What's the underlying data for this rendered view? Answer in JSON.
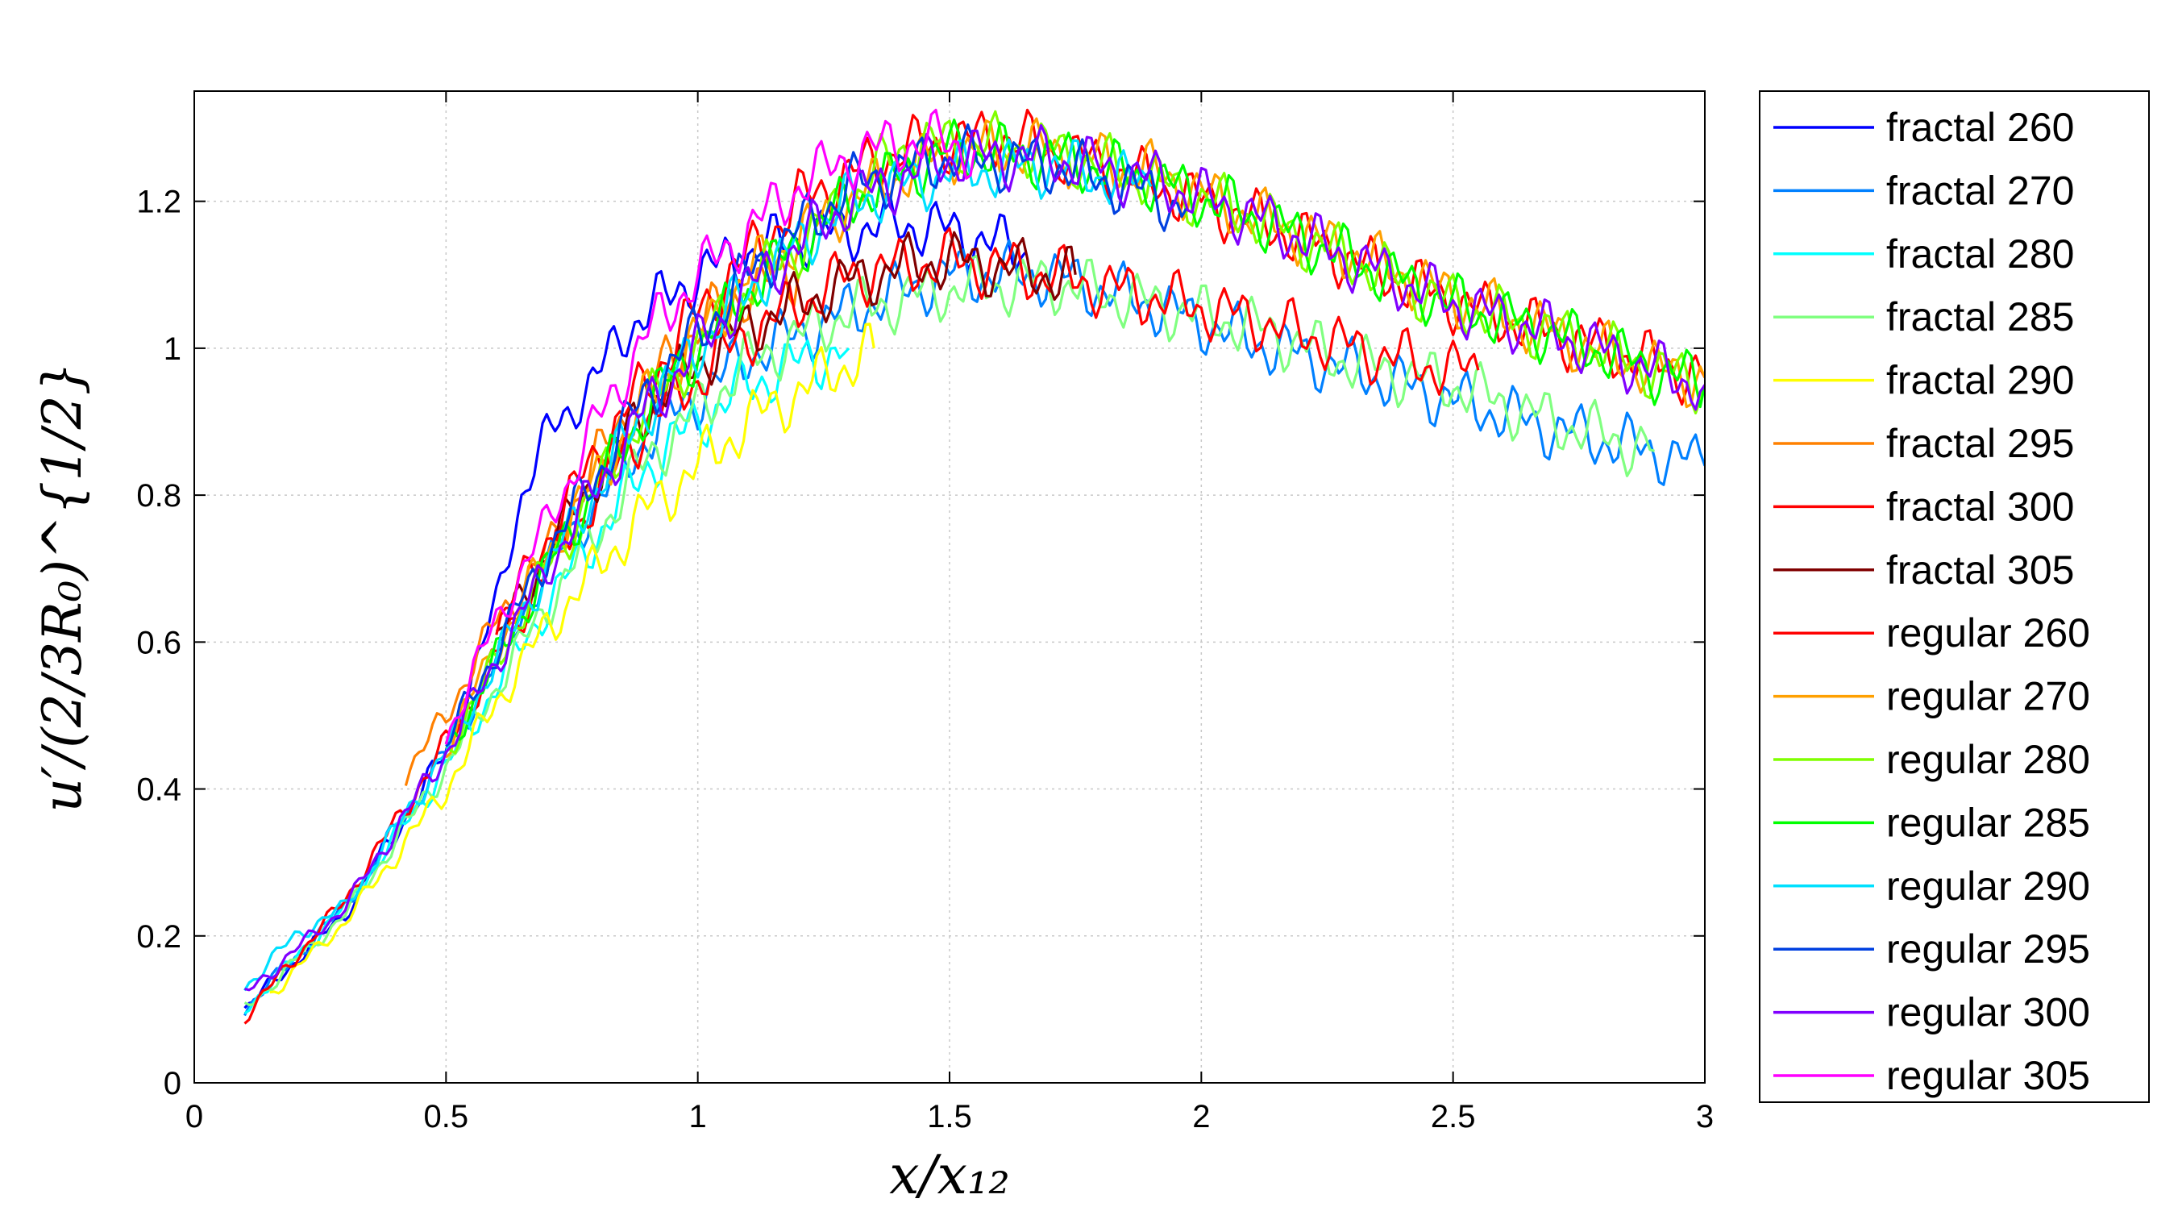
{
  "chart_data": {
    "type": "line",
    "xlabel": "x/x₁₂",
    "ylabel": "u′/(2/3R₀)^{1/2}",
    "xlim": [
      0,
      3
    ],
    "ylim": [
      0,
      1.35
    ],
    "xticks": [
      0,
      0.5,
      1,
      1.5,
      2,
      2.5,
      3
    ],
    "xtick_labels": [
      "0",
      "0.5",
      "1",
      "1.5",
      "2",
      "2.5",
      "3"
    ],
    "yticks": [
      0,
      0.2,
      0.4,
      0.6,
      0.8,
      1,
      1.2
    ],
    "ytick_labels": [
      "0",
      "0.2",
      "0.4",
      "0.6",
      "0.8",
      "1",
      "1.2"
    ],
    "grid": true,
    "legend_position": "right-outside",
    "series": [
      {
        "name": "fractal 260",
        "color": "#0000ff",
        "x": [
          0.1,
          0.3,
          0.5,
          0.6,
          0.65,
          0.7,
          0.75,
          0.8,
          0.85,
          0.9,
          1.0,
          1.1,
          1.2,
          1.3,
          1.4,
          1.5,
          1.6,
          1.65
        ],
        "y": [
          0.1,
          0.23,
          0.45,
          0.65,
          0.8,
          0.88,
          0.92,
          0.96,
          1.02,
          1.05,
          1.1,
          1.13,
          1.15,
          1.16,
          1.17,
          1.16,
          1.14,
          1.13
        ]
      },
      {
        "name": "fractal 270",
        "color": "#0080ff",
        "x": [
          0.1,
          0.3,
          0.5,
          0.7,
          0.9,
          1.1,
          1.3,
          1.5,
          1.7,
          1.9,
          2.1,
          2.3,
          2.5,
          2.7,
          2.9,
          3.0
        ],
        "y": [
          0.1,
          0.24,
          0.45,
          0.7,
          0.88,
          0.99,
          1.05,
          1.1,
          1.1,
          1.06,
          1.01,
          0.97,
          0.93,
          0.89,
          0.86,
          0.84
        ]
      },
      {
        "name": "fractal 280",
        "color": "#00ffff",
        "x": [
          0.1,
          0.3,
          0.5,
          0.7,
          0.9,
          1.0,
          1.1,
          1.2,
          1.3
        ],
        "y": [
          0.1,
          0.24,
          0.43,
          0.65,
          0.84,
          0.9,
          0.95,
          0.98,
          1.0
        ]
      },
      {
        "name": "fractal 285",
        "color": "#80ff80",
        "x": [
          0.1,
          0.3,
          0.5,
          0.7,
          0.9,
          1.1,
          1.3,
          1.5,
          1.7,
          1.9,
          2.1,
          2.3,
          2.5,
          2.7,
          2.9
        ],
        "y": [
          0.1,
          0.23,
          0.43,
          0.65,
          0.85,
          0.98,
          1.05,
          1.08,
          1.09,
          1.06,
          1.03,
          0.98,
          0.95,
          0.9,
          0.86
        ]
      },
      {
        "name": "fractal 290",
        "color": "#ffff00",
        "x": [
          0.15,
          0.3,
          0.5,
          0.6,
          0.7,
          0.8,
          0.9,
          1.0,
          1.1,
          1.2,
          1.3,
          1.35
        ],
        "y": [
          0.12,
          0.22,
          0.4,
          0.52,
          0.62,
          0.7,
          0.78,
          0.84,
          0.9,
          0.94,
          0.98,
          1.0
        ]
      },
      {
        "name": "fractal 295",
        "color": "#ff8000",
        "x": [
          0.42,
          0.5,
          0.6,
          0.7,
          0.8,
          0.9,
          1.0,
          1.1,
          1.2
        ],
        "y": [
          0.42,
          0.5,
          0.63,
          0.72,
          0.85,
          0.95,
          1.03,
          1.08,
          1.1
        ]
      },
      {
        "name": "fractal 300",
        "color": "#ff0000",
        "x": [
          0.1,
          0.3,
          0.5,
          0.7,
          0.9,
          1.1,
          1.3,
          1.5,
          1.7,
          1.9,
          2.1,
          2.3,
          2.5,
          2.55
        ],
        "y": [
          0.09,
          0.25,
          0.46,
          0.7,
          0.9,
          1.02,
          1.1,
          1.12,
          1.1,
          1.07,
          1.04,
          1.0,
          0.97,
          0.97
        ]
      },
      {
        "name": "fractal 305",
        "color": "#800000",
        "x": [
          0.6,
          0.7,
          0.8,
          0.9,
          1.0,
          1.1,
          1.2,
          1.3,
          1.4,
          1.5,
          1.6,
          1.7,
          1.75
        ],
        "y": [
          0.6,
          0.72,
          0.83,
          0.92,
          0.98,
          1.03,
          1.06,
          1.09,
          1.11,
          1.12,
          1.11,
          1.1,
          1.1
        ]
      },
      {
        "name": "regular 260",
        "color": "#ff0000",
        "x": [
          0.6,
          0.8,
          1.0,
          1.2,
          1.4,
          1.6,
          1.8,
          2.0,
          2.2,
          2.4,
          2.6,
          2.8,
          3.0
        ],
        "y": [
          0.62,
          0.86,
          1.05,
          1.2,
          1.27,
          1.29,
          1.25,
          1.2,
          1.15,
          1.09,
          1.04,
          1.0,
          0.96
        ]
      },
      {
        "name": "regular 270",
        "color": "#ffa000",
        "x": [
          0.5,
          0.7,
          0.9,
          1.1,
          1.3,
          1.5,
          1.7,
          1.9,
          2.1,
          2.3,
          2.5,
          2.7,
          2.9,
          3.0
        ],
        "y": [
          0.46,
          0.72,
          0.93,
          1.1,
          1.2,
          1.27,
          1.27,
          1.24,
          1.18,
          1.13,
          1.07,
          1.02,
          0.97,
          0.96
        ]
      },
      {
        "name": "regular 280",
        "color": "#80ff00",
        "x": [
          0.5,
          0.7,
          0.9,
          1.1,
          1.3,
          1.4,
          1.5,
          1.7,
          1.9,
          2.1,
          2.3,
          2.5,
          2.7,
          2.9,
          3.0
        ],
        "y": [
          0.45,
          0.7,
          0.92,
          1.08,
          1.2,
          1.27,
          1.28,
          1.27,
          1.23,
          1.18,
          1.12,
          1.06,
          1.02,
          0.97,
          0.95
        ]
      },
      {
        "name": "regular 285",
        "color": "#00ff00",
        "x": [
          0.5,
          0.7,
          0.9,
          1.1,
          1.3,
          1.5,
          1.7,
          1.9,
          2.1,
          2.3,
          2.5,
          2.7,
          2.9,
          3.0
        ],
        "y": [
          0.45,
          0.7,
          0.92,
          1.08,
          1.2,
          1.27,
          1.26,
          1.23,
          1.18,
          1.12,
          1.06,
          1.02,
          0.97,
          0.95
        ]
      },
      {
        "name": "regular 290",
        "color": "#00e0ff",
        "x": [
          0.1,
          0.2,
          0.3,
          0.5,
          0.7,
          0.9,
          1.1,
          1.3,
          1.5,
          1.7,
          1.9
        ],
        "y": [
          0.13,
          0.2,
          0.24,
          0.45,
          0.7,
          0.92,
          1.08,
          1.2,
          1.24,
          1.25,
          1.22
        ]
      },
      {
        "name": "regular 295",
        "color": "#0040e0",
        "x": [
          0.5,
          0.7,
          0.9,
          1.1,
          1.3,
          1.5,
          1.7,
          1.9,
          1.97
        ],
        "y": [
          0.46,
          0.72,
          0.94,
          1.1,
          1.22,
          1.26,
          1.25,
          1.21,
          1.19
        ]
      },
      {
        "name": "regular 300",
        "color": "#8000ff",
        "x": [
          0.1,
          0.3,
          0.5,
          0.7,
          0.9,
          1.1,
          1.3,
          1.5,
          1.7,
          1.9,
          2.1,
          2.3,
          2.5,
          2.7,
          2.9,
          3.0
        ],
        "y": [
          0.12,
          0.24,
          0.45,
          0.7,
          0.92,
          1.08,
          1.2,
          1.26,
          1.26,
          1.23,
          1.18,
          1.12,
          1.06,
          1.02,
          0.97,
          0.95
        ]
      },
      {
        "name": "regular 305",
        "color": "#ff00ff",
        "x": [
          0.5,
          0.6,
          0.7,
          0.8,
          0.9,
          1.0,
          1.1,
          1.2,
          1.3,
          1.4,
          1.5,
          1.55
        ],
        "y": [
          0.47,
          0.63,
          0.76,
          0.9,
          1.02,
          1.1,
          1.16,
          1.22,
          1.26,
          1.28,
          1.28,
          1.27
        ]
      }
    ]
  }
}
